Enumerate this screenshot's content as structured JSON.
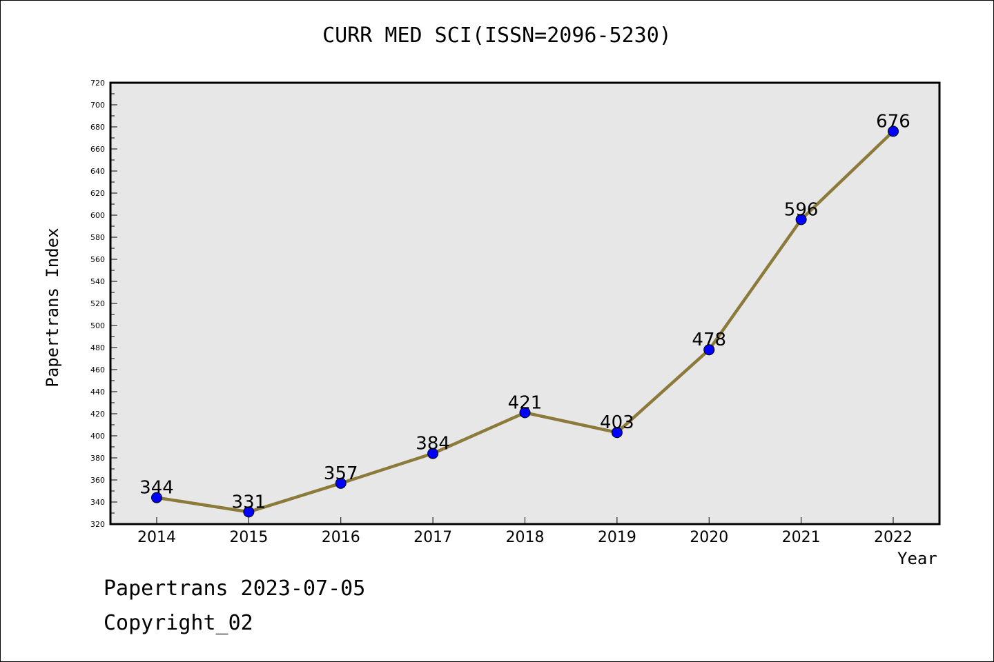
{
  "chart_data": {
    "type": "line",
    "title": "CURR MED SCI(ISSN=2096-5230)",
    "xlabel": "Year",
    "ylabel": "Papertrans Index",
    "categories": [
      "2014",
      "2015",
      "2016",
      "2017",
      "2018",
      "2019",
      "2020",
      "2021",
      "2022"
    ],
    "values": [
      344,
      331,
      357,
      384,
      421,
      403,
      478,
      596,
      676
    ],
    "ylim": [
      320,
      720
    ],
    "ytick_step": 20,
    "yticks": [
      "320",
      "340",
      "360",
      "380",
      "400",
      "420",
      "440",
      "460",
      "480",
      "500",
      "520",
      "540",
      "560",
      "580",
      "600",
      "620",
      "640",
      "660",
      "680",
      "700",
      "720"
    ],
    "grid": false,
    "line_color": "#8b7a3a",
    "marker_color": "#0000ff",
    "plot_background": "#e7e7e7"
  },
  "footer": {
    "line1": "Papertrans 2023-07-05",
    "line2": "Copyright_02"
  }
}
